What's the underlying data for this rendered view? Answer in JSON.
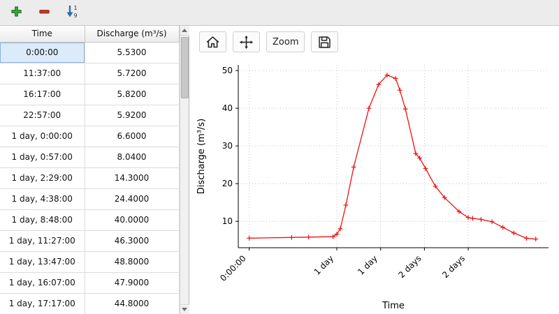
{
  "main_toolbar": {
    "add_tooltip": "Add row",
    "remove_tooltip": "Remove row",
    "sort_tooltip": "Sort ascending"
  },
  "table": {
    "columns": [
      "Time",
      "Discharge (m³/s)"
    ],
    "rows": [
      {
        "time": "0:00:00",
        "discharge": "5.5300",
        "selected": true
      },
      {
        "time": "11:37:00",
        "discharge": "5.7200",
        "selected": false
      },
      {
        "time": "16:17:00",
        "discharge": "5.8200",
        "selected": false
      },
      {
        "time": "22:57:00",
        "discharge": "5.9200",
        "selected": false
      },
      {
        "time": "1 day, 0:00:00",
        "discharge": "6.6000",
        "selected": false
      },
      {
        "time": "1 day, 0:57:00",
        "discharge": "8.0400",
        "selected": false
      },
      {
        "time": "1 day, 2:29:00",
        "discharge": "14.3000",
        "selected": false
      },
      {
        "time": "1 day, 4:38:00",
        "discharge": "24.4000",
        "selected": false
      },
      {
        "time": "1 day, 8:48:00",
        "discharge": "40.0000",
        "selected": false
      },
      {
        "time": "1 day, 11:27:00",
        "discharge": "46.3000",
        "selected": false
      },
      {
        "time": "1 day, 13:47:00",
        "discharge": "48.8000",
        "selected": false
      },
      {
        "time": "1 day, 16:07:00",
        "discharge": "47.9000",
        "selected": false
      },
      {
        "time": "1 day, 17:17:00",
        "discharge": "44.8000",
        "selected": false
      }
    ]
  },
  "chart_toolbar": {
    "zoom_label": "Zoom"
  },
  "chart_data": {
    "type": "line",
    "title": "",
    "xlabel": "Time",
    "ylabel": "Discharge (m³/s)",
    "line_color": "#ee1111",
    "marker": "+",
    "grid": true,
    "xlim_hours": [
      -3,
      82
    ],
    "ylim": [
      3,
      51.5
    ],
    "x_hours": [
      0,
      11.62,
      16.28,
      22.95,
      24,
      24.95,
      26.48,
      28.63,
      32.8,
      35.45,
      37.78,
      40.12,
      41.28,
      42.8,
      45.6,
      46.7,
      48.3,
      51.0,
      53.5,
      57.5,
      60.0,
      61.2,
      63.5,
      66.5,
      69.5,
      72.5,
      76.0,
      78.5
    ],
    "values": [
      5.53,
      5.72,
      5.82,
      5.92,
      6.6,
      8.04,
      14.3,
      24.4,
      40.0,
      46.3,
      48.8,
      47.9,
      44.8,
      39.8,
      28.0,
      26.8,
      24.0,
      19.3,
      16.3,
      12.6,
      11.0,
      10.8,
      10.5,
      9.9,
      8.4,
      6.9,
      5.5,
      5.3
    ],
    "y_ticks": [
      10,
      20,
      30,
      40,
      50
    ],
    "x_ticks": [
      {
        "hours": 0,
        "label": "0:00:00"
      },
      {
        "hours": 24,
        "label": "1 day"
      },
      {
        "hours": 36,
        "label": "1 day"
      },
      {
        "hours": 48,
        "label": "2 days"
      },
      {
        "hours": 60,
        "label": "2 days"
      }
    ]
  }
}
